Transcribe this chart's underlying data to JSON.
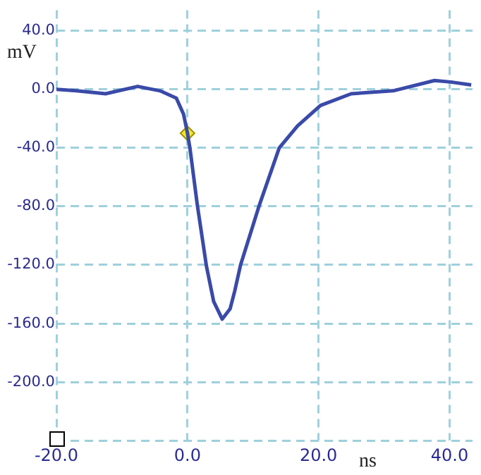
{
  "chart_data": {
    "type": "line",
    "xlabel": "ns",
    "ylabel": "mV",
    "xlim": [
      -20,
      43.5
    ],
    "ylim": [
      -240,
      54
    ],
    "xticks": [
      {
        "value": -20,
        "label": "-20.0"
      },
      {
        "value": 0,
        "label": "0.0"
      },
      {
        "value": 20,
        "label": "20.0"
      },
      {
        "value": 40,
        "label": "40.0"
      }
    ],
    "yticks": [
      {
        "value": -240,
        "label": null
      },
      {
        "value": -200,
        "label": "-200.0"
      },
      {
        "value": -160,
        "label": "-160.0"
      },
      {
        "value": -120,
        "label": "-120.0"
      },
      {
        "value": -80,
        "label": "-80.0"
      },
      {
        "value": -40,
        "label": "-40.0"
      },
      {
        "value": 0,
        "label": "0.0"
      },
      {
        "value": 40,
        "label": "40.0"
      }
    ],
    "grid": true,
    "legend": false,
    "marker": "none",
    "line_style": "solid",
    "series": [
      {
        "color": "#3a4aa8",
        "x": [
          -20,
          -17,
          -12.5,
          -7.6,
          -4.2,
          -1.7,
          -0.6,
          0,
          0.4,
          1.5,
          2.2,
          2.9,
          4,
          5.3,
          6.5,
          7.2,
          8.1,
          10.9,
          14,
          16.8,
          20.3,
          25,
          31.4,
          37.7,
          40.2,
          43.3
        ],
        "values": [
          0,
          -1,
          -3,
          2,
          -1,
          -6,
          -17,
          -30,
          -41,
          -79,
          -100,
          -121,
          -145,
          -157,
          -150,
          -138,
          -120,
          -80,
          -40,
          -25,
          -11,
          -3,
          -1,
          6,
          5,
          3
        ]
      },
      {
        "type": "scatter",
        "marker": "diamond",
        "color": "#f2e62a",
        "x": [
          0
        ],
        "values": [
          -30
        ]
      }
    ]
  }
}
